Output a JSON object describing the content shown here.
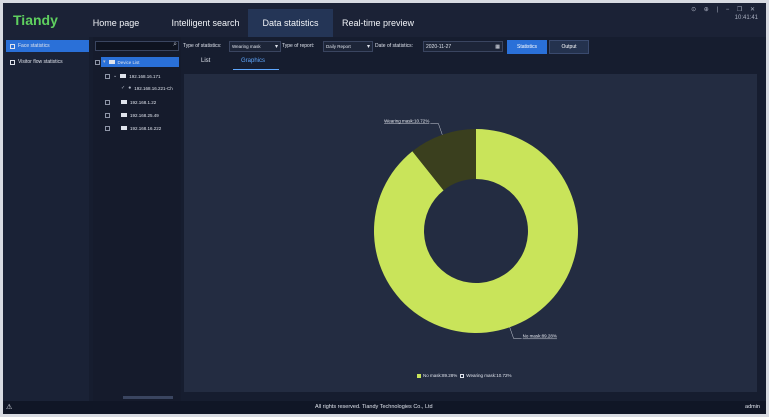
{
  "app": {
    "logo": "Tiandy",
    "clock": "10:41:41",
    "window_controls": [
      "⊙",
      "⊕",
      "|",
      "−",
      "❐",
      "✕"
    ]
  },
  "nav": [
    {
      "label": "Home page",
      "active": false
    },
    {
      "label": "Intelligent search",
      "active": false
    },
    {
      "label": "Data statistics",
      "active": true
    },
    {
      "label": "Real-time preview",
      "active": false
    }
  ],
  "sidebar": {
    "items": [
      {
        "label": "Face statistics",
        "active": true,
        "icon": "face-icon"
      },
      {
        "label": "Visitor flow statistics",
        "active": false,
        "icon": "visitor-icon"
      }
    ]
  },
  "device_tree": {
    "search_placeholder": "",
    "root": "Device List",
    "nodes": [
      {
        "label": "192.168.16.171",
        "level": 1
      },
      {
        "label": "192.168.16.221-Ch",
        "level": 2
      },
      {
        "label": "192.168.1.22",
        "level": 1
      },
      {
        "label": "192.168.25.49",
        "level": 1
      },
      {
        "label": "192.168.16.222",
        "level": 1
      }
    ]
  },
  "filters": {
    "type_of_statistics_label": "Type of statistics:",
    "type_of_statistics_value": "Wearing mask",
    "type_of_report_label": "Type of report:",
    "type_of_report_value": "Daily Report",
    "date_label": "Date of statistics:",
    "date_value": "2020-11-27",
    "statistics_button": "Statistics",
    "output_button": "Output"
  },
  "tabs": [
    {
      "label": "List",
      "active": false
    },
    {
      "label": "Graphics",
      "active": true
    }
  ],
  "chart_data": {
    "type": "pie",
    "donut": true,
    "slices": [
      {
        "name": "No mask",
        "value": 89.28,
        "label": "No mask:89.28%",
        "color": "#c9e45a"
      },
      {
        "name": "Wearing mask",
        "value": 10.72,
        "label": "Wearing mask:10.72%",
        "color": "#3a3f1e"
      }
    ],
    "legend": [
      "No mask:89.28%",
      "Wearing mask:10.72%"
    ],
    "legend_placement": "bottom"
  },
  "footer": {
    "copyright": "All rights reserved. Tiandy Technologies Co., Ltd",
    "user": "admin"
  }
}
